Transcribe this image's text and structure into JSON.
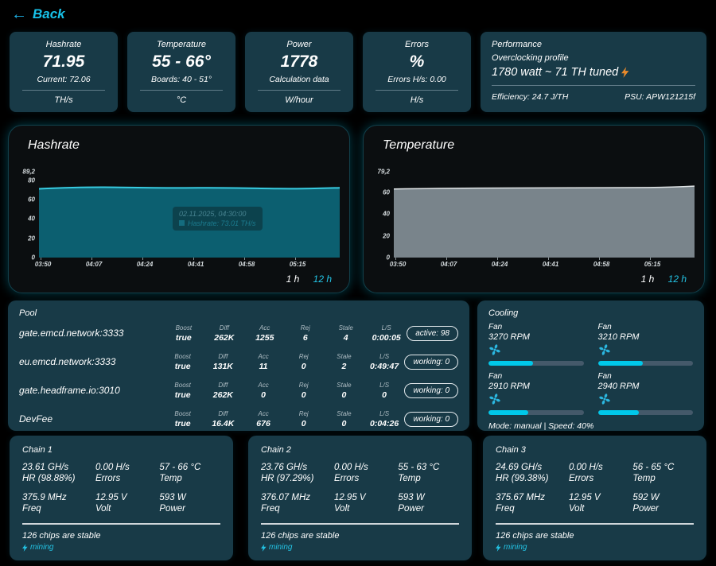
{
  "back": {
    "arrow": "←",
    "label": "Back"
  },
  "stat_cards": [
    {
      "title": "Hashrate",
      "value": "71.95",
      "sub": "Current: 72.06",
      "unit": "TH/s"
    },
    {
      "title": "Temperature",
      "value": "55 - 66°",
      "sub": "Boards: 40 - 51°",
      "unit": "°C"
    },
    {
      "title": "Power",
      "value": "1778",
      "sub": "Calculation data",
      "unit": "W/hour"
    },
    {
      "title": "Errors",
      "value": "%",
      "sub": "Errors H/s: 0.00",
      "unit": "H/s"
    }
  ],
  "performance": {
    "title": "Performance",
    "line1": "Overclocking profile",
    "line2": "1780 watt ~ 71 TH tuned",
    "efficiency": "Efficiency: 24.7 J/TH",
    "psu": "PSU: APW121215f"
  },
  "charts": {
    "hashrate": {
      "title": "Hashrate",
      "y_labels": {
        "max": "89,2",
        "l80": "80",
        "l60": "60",
        "l40": "40",
        "l20": "20",
        "l0": "0"
      },
      "x_labels": [
        "03:50",
        "04:07",
        "04:24",
        "04:41",
        "04:58",
        "05:15"
      ],
      "range_1h": "1 h",
      "range_12h": "12 h",
      "tooltip_date": "02.11.2025, 04:30:00",
      "tooltip_value": "Hashrate: 73.01 TH/s"
    },
    "temperature": {
      "title": "Temperature",
      "y_labels": {
        "max": "79,2",
        "l60": "60",
        "l40": "40",
        "l20": "20",
        "l0": "0"
      },
      "x_labels": [
        "03:50",
        "04:07",
        "04:24",
        "04:41",
        "04:58",
        "05:15"
      ],
      "range_1h": "1 h",
      "range_12h": "12 h"
    }
  },
  "chart_data": [
    {
      "type": "area",
      "title": "Hashrate",
      "x": [
        "03:50",
        "03:58",
        "04:07",
        "04:15",
        "04:24",
        "04:32",
        "04:41",
        "04:49",
        "04:58",
        "05:07",
        "05:15",
        "05:25"
      ],
      "values": [
        71.2,
        71.9,
        72.6,
        72.9,
        72.4,
        71.9,
        71.6,
        71.4,
        71.7,
        71.9,
        72.0,
        72.1
      ],
      "unit": "TH/s",
      "ylim": [
        0,
        89.2
      ],
      "line_color": "#38cbe0",
      "fill_color": "#0c5f70",
      "legend_position": "none",
      "grid": false
    },
    {
      "type": "area",
      "title": "Temperature",
      "x": [
        "03:50",
        "03:58",
        "04:07",
        "04:15",
        "04:24",
        "04:32",
        "04:41",
        "04:49",
        "04:58",
        "05:07",
        "05:15",
        "05:25"
      ],
      "values": [
        63.2,
        64.0,
        64.3,
        64.4,
        64.4,
        64.4,
        64.4,
        64.5,
        64.6,
        65.0,
        65.7,
        66.0
      ],
      "unit": "°C",
      "ylim": [
        0,
        79.2
      ],
      "line_color": "#e2e6e8",
      "fill_color": "#79848b",
      "legend_position": "none",
      "grid": false
    }
  ],
  "pool": {
    "title": "Pool",
    "col_labels": {
      "boost": "Boost",
      "diff": "Diff",
      "acc": "Acc",
      "rej": "Rej",
      "stale": "Stale",
      "ls": "L/S"
    },
    "rows": [
      {
        "name": "gate.emcd.network:3333",
        "boost": "true",
        "diff": "262K",
        "acc": "1255",
        "rej": "6",
        "stale": "4",
        "ls": "0:00:05",
        "status": "active: 98"
      },
      {
        "name": "eu.emcd.network:3333",
        "boost": "true",
        "diff": "131K",
        "acc": "11",
        "rej": "0",
        "stale": "2",
        "ls": "0:49:47",
        "status": "working: 0"
      },
      {
        "name": "gate.headframe.io:3010",
        "boost": "true",
        "diff": "262K",
        "acc": "0",
        "rej": "0",
        "stale": "0",
        "ls": "0",
        "status": "working: 0"
      },
      {
        "name": "DevFee",
        "boost": "true",
        "diff": "16.4K",
        "acc": "676",
        "rej": "0",
        "stale": "0",
        "ls": "0:04:26",
        "status": "working: 0"
      }
    ]
  },
  "cooling": {
    "title": "Cooling",
    "fan_label": "Fan",
    "fans": [
      {
        "rpm": "3270 RPM",
        "percent": 47
      },
      {
        "rpm": "3210 RPM",
        "percent": 47
      },
      {
        "rpm": "2910 RPM",
        "percent": 42
      },
      {
        "rpm": "2940 RPM",
        "percent": 43
      }
    ],
    "mode": "Mode: manual | Speed: 40%"
  },
  "chain_labels": {
    "errors": "Errors",
    "temp": "Temp",
    "freq": "Freq",
    "volt": "Volt",
    "power": "Power"
  },
  "chains": [
    {
      "title": "Chain 1",
      "hr": "23.61 GH/s",
      "hr_label": "HR (98.88%)",
      "errors": "0.00 H/s",
      "temp": "57 - 66 °C",
      "freq": "375.9 MHz",
      "volt": "12.95 V",
      "power": "593 W",
      "chips": "126 chips are stable",
      "status": "mining"
    },
    {
      "title": "Chain 2",
      "hr": "23.76 GH/s",
      "hr_label": "HR (97.29%)",
      "errors": "0.00 H/s",
      "temp": "55 - 63 °C",
      "freq": "376.07 MHz",
      "volt": "12.95 V",
      "power": "593 W",
      "chips": "126 chips are stable",
      "status": "mining"
    },
    {
      "title": "Chain 3",
      "hr": "24.69 GH/s",
      "hr_label": "HR (99.38%)",
      "errors": "0.00 H/s",
      "temp": "56 - 65 °C",
      "freq": "375.67 MHz",
      "volt": "12.95 V",
      "power": "592 W",
      "chips": "126 chips are stable",
      "status": "mining"
    }
  ],
  "colors": {
    "background": "#000000",
    "card": "#183a47",
    "chart_panel": "#0b0e10",
    "accent_cyan": "#00c8ea",
    "link_cyan": "#17c1e8",
    "bolt_orange": "#e98a2b",
    "hashrate_fill": "#0c5f70",
    "hashrate_line": "#38cbe0",
    "temp_fill": "#79848b",
    "badge_border": "#e6ecef"
  }
}
